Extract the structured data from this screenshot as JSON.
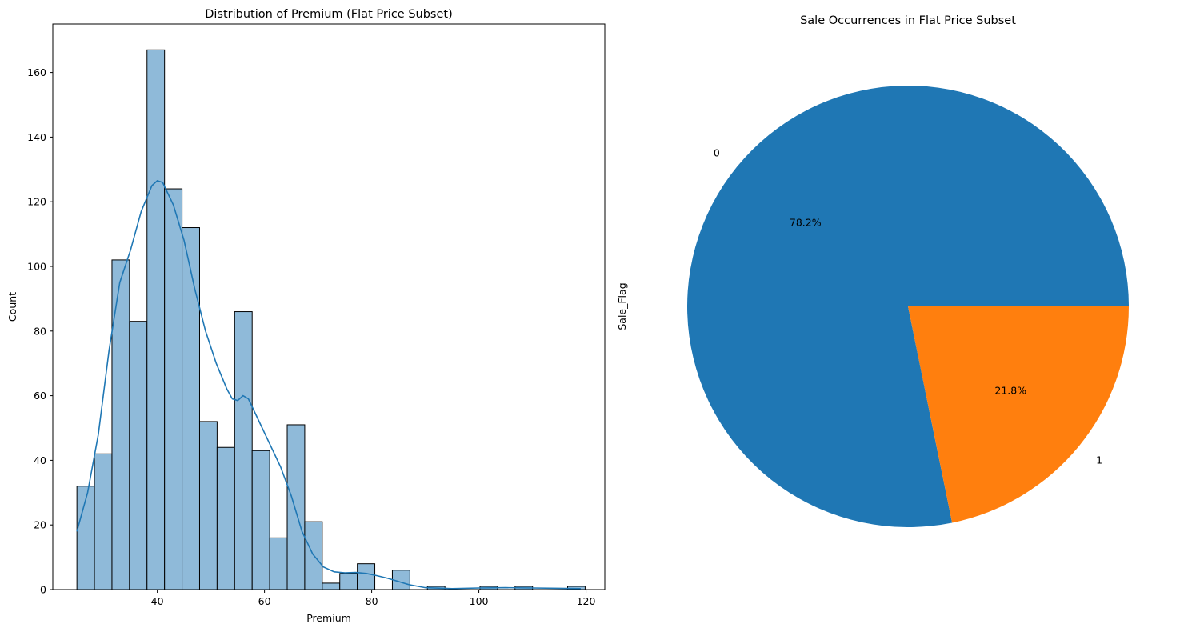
{
  "chart_data": [
    {
      "type": "bar",
      "subtype": "histogram-with-kde",
      "title": "Distribution of Premium (Flat Price Subset)",
      "xlabel": "Premium",
      "ylabel": "Count",
      "xlim": [
        20.5,
        123.5
      ],
      "ylim": [
        0,
        175
      ],
      "xticks": [
        40,
        60,
        80,
        100,
        120
      ],
      "yticks": [
        0,
        20,
        40,
        60,
        80,
        100,
        120,
        140,
        160
      ],
      "bin_start": 25,
      "bin_width": 3.27,
      "counts": [
        32,
        42,
        102,
        83,
        167,
        124,
        112,
        52,
        44,
        86,
        43,
        16,
        51,
        21,
        2,
        5,
        8,
        0,
        6,
        0,
        1,
        0,
        0,
        1,
        0,
        1,
        0,
        0,
        1
      ],
      "bar_color": "#8fbad9",
      "bar_edge_color": "#000000",
      "kde": {
        "color": "#1f77b4",
        "x": [
          25,
          27,
          29,
          31,
          33,
          35,
          37,
          39,
          40,
          41,
          43,
          45,
          47,
          49,
          51,
          53,
          54,
          55,
          56,
          57,
          59,
          61,
          63,
          65,
          67,
          69,
          71,
          73,
          75,
          77,
          79,
          81,
          83,
          85,
          87,
          90,
          95,
          100,
          105,
          110,
          115,
          119
        ],
        "y": [
          18,
          30,
          48,
          74,
          95,
          105,
          117,
          125,
          126.5,
          126,
          119,
          108,
          93,
          80,
          70,
          62,
          59,
          58.5,
          60,
          59,
          52,
          45,
          38,
          29,
          18,
          11,
          7,
          5.5,
          5.2,
          5.3,
          5.0,
          4.3,
          3.5,
          2.5,
          1.5,
          0.6,
          0.3,
          0.5,
          0.6,
          0.5,
          0.4,
          0.3
        ]
      }
    },
    {
      "type": "pie",
      "title": "Sale Occurrences in Flat Price Subset",
      "ylabel": "Sale_Flag",
      "labels": [
        "0",
        "1"
      ],
      "values": [
        78.2,
        21.8
      ],
      "percent_labels": [
        "78.2%",
        "21.8%"
      ],
      "colors": [
        "#1f77b4",
        "#ff7f0e"
      ]
    }
  ]
}
